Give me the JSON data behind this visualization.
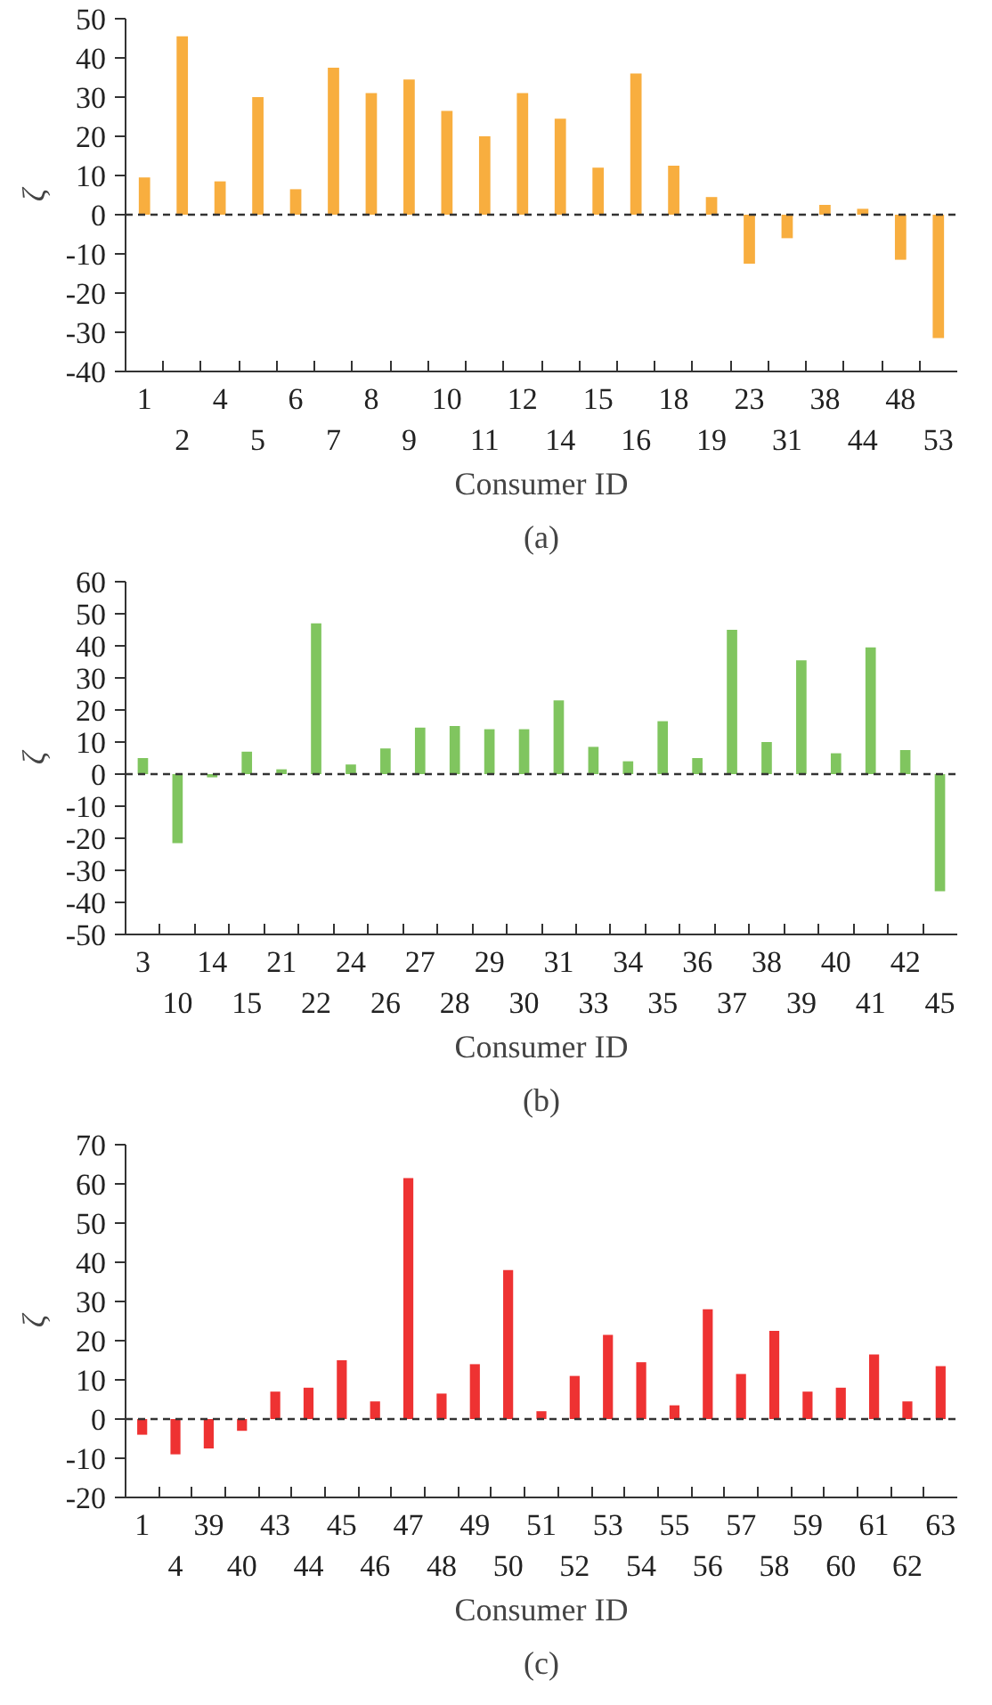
{
  "chart_data": [
    {
      "type": "bar",
      "title": "(a)",
      "xlabel": "Consumer ID",
      "ylabel": "ζ",
      "categories": [
        "1",
        "2",
        "4",
        "5",
        "6",
        "7",
        "8",
        "9",
        "10",
        "11",
        "12",
        "14",
        "15",
        "16",
        "18",
        "19",
        "23",
        "31",
        "38",
        "44",
        "48",
        "53"
      ],
      "series": [
        {
          "color": "#f8ae3f",
          "values": [
            9.5,
            45.5,
            8.5,
            30,
            6.5,
            37.5,
            31,
            34.5,
            26.5,
            20,
            31,
            24.5,
            12,
            36,
            12.5,
            4.5,
            -12.5,
            -6,
            2.5,
            1.5,
            -11.5,
            -31.5
          ]
        }
      ],
      "ylim": [
        -40,
        50
      ],
      "yticks": [
        -40,
        -30,
        -20,
        -10,
        0,
        10,
        20,
        30,
        40,
        50
      ],
      "grid": false,
      "ref_lines": [
        {
          "axis": "y",
          "value": 0,
          "color": "#333333",
          "line_style": "dashed"
        }
      ]
    },
    {
      "type": "bar",
      "title": "(b)",
      "xlabel": "Consumer ID",
      "ylabel": "ζ",
      "categories": [
        "3",
        "10",
        "14",
        "15",
        "21",
        "22",
        "24",
        "26",
        "27",
        "28",
        "29",
        "30",
        "31",
        "33",
        "34",
        "35",
        "36",
        "37",
        "38",
        "39",
        "40",
        "41",
        "42",
        "45"
      ],
      "series": [
        {
          "color": "#80c55f",
          "values": [
            5,
            -21.5,
            -1,
            7,
            1.5,
            47,
            3,
            8,
            14.5,
            15,
            14,
            14,
            23,
            8.5,
            4,
            16.5,
            5,
            45,
            10,
            35.5,
            6.5,
            39.5,
            7.5,
            -36.5
          ]
        }
      ],
      "ylim": [
        -50,
        60
      ],
      "yticks": [
        -50,
        -40,
        -30,
        -20,
        -10,
        0,
        10,
        20,
        30,
        40,
        50,
        60
      ],
      "grid": false,
      "ref_lines": [
        {
          "axis": "y",
          "value": 0,
          "color": "#333333",
          "line_style": "dashed"
        }
      ]
    },
    {
      "type": "bar",
      "title": "(c)",
      "xlabel": "Consumer ID",
      "ylabel": "ζ",
      "categories": [
        "1",
        "4",
        "39",
        "40",
        "43",
        "44",
        "45",
        "46",
        "47",
        "48",
        "49",
        "50",
        "51",
        "52",
        "53",
        "54",
        "55",
        "56",
        "57",
        "58",
        "59",
        "60",
        "61",
        "62",
        "63"
      ],
      "series": [
        {
          "color": "#ee3232",
          "values": [
            -4,
            -9,
            -7.5,
            -3,
            7,
            8,
            15,
            4.5,
            61.5,
            6.5,
            14,
            38,
            2,
            11,
            21.5,
            14.5,
            3.5,
            28,
            11.5,
            22.5,
            7,
            8,
            16.5,
            4.5,
            13.5
          ]
        }
      ],
      "ylim": [
        -20,
        70
      ],
      "yticks": [
        -20,
        -10,
        0,
        10,
        20,
        30,
        40,
        50,
        60,
        70
      ],
      "grid": false,
      "ref_lines": [
        {
          "axis": "y",
          "value": 0,
          "color": "#333333",
          "line_style": "dashed"
        }
      ]
    }
  ]
}
